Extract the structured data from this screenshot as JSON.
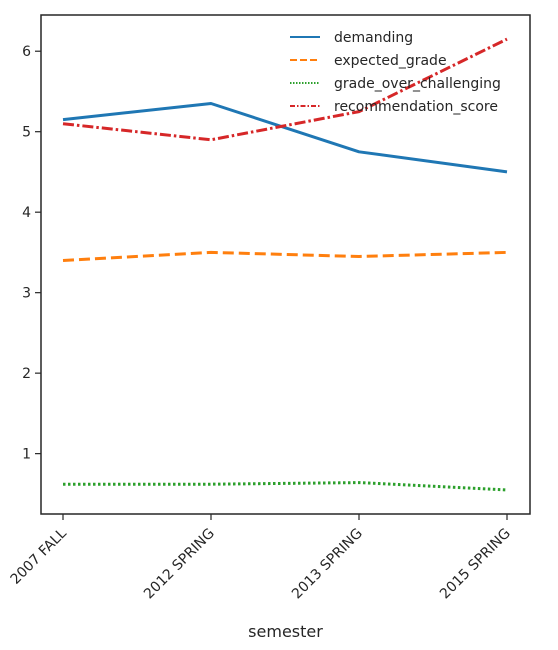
{
  "chart_data": {
    "type": "line",
    "title": "",
    "xlabel": "semester",
    "ylabel": "",
    "categories": [
      "2007 FALL",
      "2012 SPRING",
      "2013 SPRING",
      "2015 SPRING"
    ],
    "ylim": [
      0.25,
      6.45
    ],
    "yticks": [
      1,
      2,
      3,
      4,
      5,
      6
    ],
    "grid": false,
    "legend_position": "top-right",
    "series": [
      {
        "name": "demanding",
        "values": [
          5.15,
          5.35,
          4.75,
          4.5
        ],
        "color": "#1f77b4",
        "style": "solid"
      },
      {
        "name": "expected_grade",
        "values": [
          3.4,
          3.5,
          3.45,
          3.5
        ],
        "color": "#ff7f0e",
        "style": "dashed"
      },
      {
        "name": "grade_over_challenging",
        "values": [
          0.62,
          0.62,
          0.64,
          0.55
        ],
        "color": "#2ca02c",
        "style": "dotted"
      },
      {
        "name": "recommendation_score",
        "values": [
          5.1,
          4.9,
          5.25,
          6.15
        ],
        "color": "#d62728",
        "style": "dashdot"
      }
    ]
  }
}
